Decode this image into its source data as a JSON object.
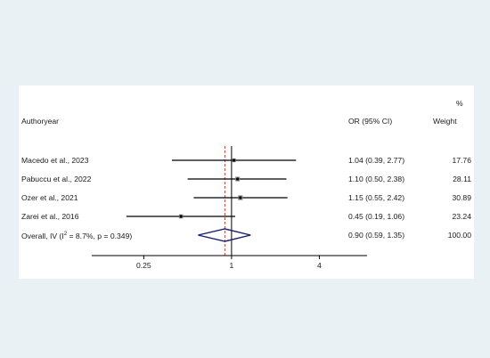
{
  "header": {
    "study_col": "Authoryear",
    "effect_col": "OR (95% CI)",
    "weight_col": "Weight",
    "percent_sign": "%"
  },
  "chart_data": {
    "type": "forest",
    "x_scale": "log",
    "x_ticks": [
      0.25,
      1,
      4
    ],
    "x_tick_labels": [
      "0.25",
      "1",
      "4"
    ],
    "xlim": [
      0.11,
      8.5
    ],
    "null_line": 1,
    "pooled_line": 0.9,
    "studies": [
      {
        "label": "Macedo et al., 2023",
        "or": 1.04,
        "lo": 0.39,
        "hi": 2.77,
        "ci_text": "1.04 (0.39, 2.77)",
        "weight": "17.76"
      },
      {
        "label": "Pabuccu et al., 2022",
        "or": 1.1,
        "lo": 0.5,
        "hi": 2.38,
        "ci_text": "1.10 (0.50, 2.38)",
        "weight": "28.11"
      },
      {
        "label": "Ozer et al., 2021",
        "or": 1.15,
        "lo": 0.55,
        "hi": 2.42,
        "ci_text": "1.15 (0.55, 2.42)",
        "weight": "30.89"
      },
      {
        "label": "Zarei et al., 2016",
        "or": 0.45,
        "lo": 0.19,
        "hi": 1.06,
        "ci_text": "0.45 (0.19, 1.06)",
        "weight": "23.24"
      }
    ],
    "overall": {
      "label_prefix": "Overall, IV (I",
      "label_sup": "2",
      "label_suffix": " = 8.7%, p = 0.349)",
      "or": 0.9,
      "lo": 0.59,
      "hi": 1.35,
      "ci_text": "0.90 (0.59, 1.35)",
      "weight": "100.00"
    },
    "colors": {
      "ci_line": "#000000",
      "diamond": "#1a1a6e",
      "pooled_line": "#c0392b",
      "axis": "#000000"
    }
  }
}
